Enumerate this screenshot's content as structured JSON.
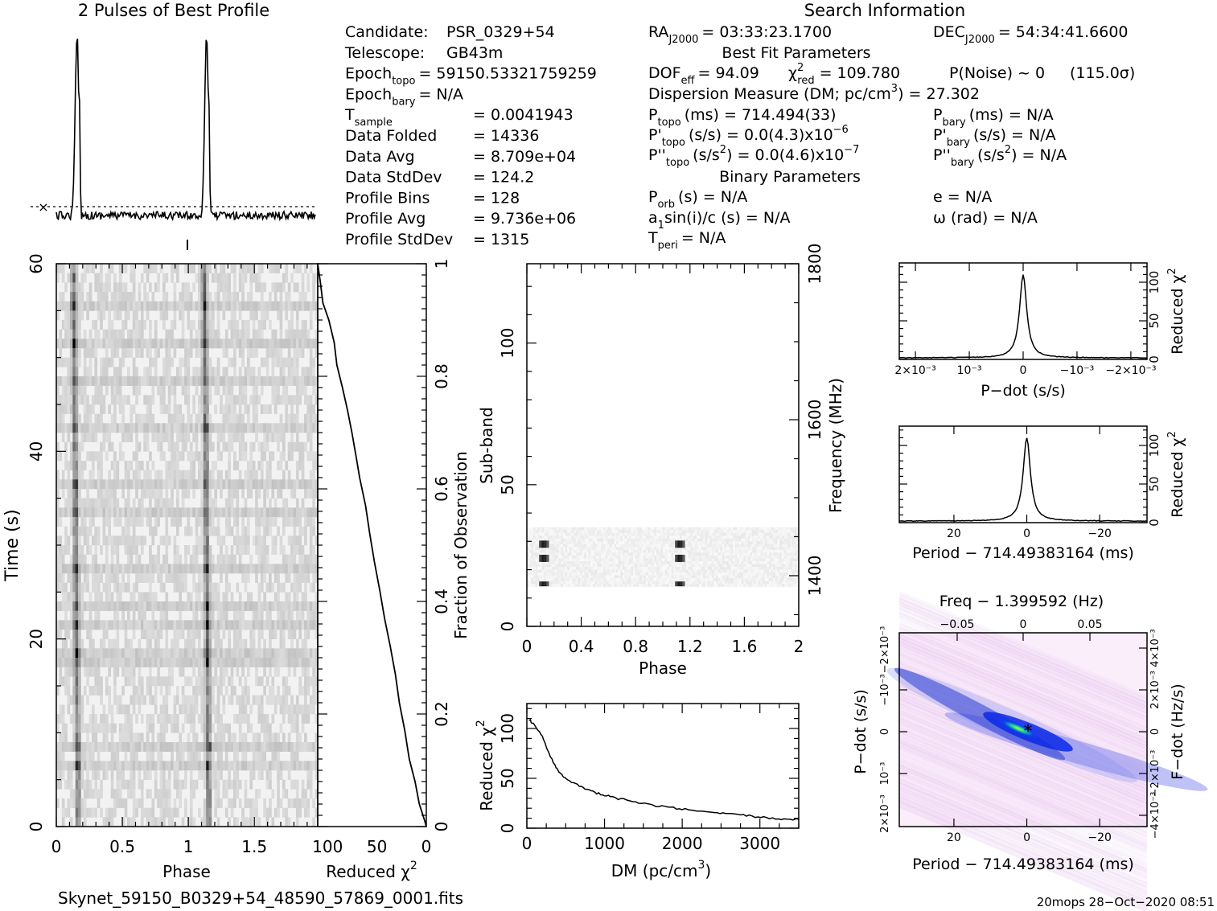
{
  "header": {
    "profile_title": "2 Pulses of Best Profile",
    "search_title": "Search Information",
    "best_fit_title": "Best Fit Parameters",
    "binary_title": "Binary Parameters",
    "filename": "Skynet_59150_B0329+54_48590_57869_0001.fits",
    "footer": "20mops 28−Oct−2020 08:51"
  },
  "info_left": [
    {
      "label": "Candidate:",
      "value": "PSR_0329+54"
    },
    {
      "label": "Telescope:",
      "value": "GB43m"
    },
    {
      "label": "Epoch",
      "sub": "topo",
      "value": "= 59150.53321759259"
    },
    {
      "label": "Epoch",
      "sub": "bary",
      "value": "= N/A"
    },
    {
      "label": "T",
      "sub": "sample",
      "value": "=   0.0041943"
    },
    {
      "label": "Data Folded",
      "value": "=   14336"
    },
    {
      "label": "Data Avg",
      "value": "=   8.709e+04"
    },
    {
      "label": "Data StdDev",
      "value": "=   124.2"
    },
    {
      "label": "Profile Bins",
      "value": "=   128"
    },
    {
      "label": "Profile Avg",
      "value": "=   9.736e+06"
    },
    {
      "label": "Profile StdDev",
      "value": "=   1315"
    }
  ],
  "info_mid": {
    "ra": "RA",
    "ra_sub": "J2000",
    "ra_value": "= 03:33:23.1700",
    "dec": "DEC",
    "dec_sub": "J2000",
    "dec_value": "= 54:34:41.6600",
    "dof": "DOF",
    "dof_sub": "eff",
    "dof_value": "= 94.09",
    "chi_label": "χ",
    "chi_sup": "2",
    "chi_sub": "red",
    "chi_value": "= 109.780",
    "pnoise": "P(Noise) ~ 0",
    "sigma": "(115.0σ)",
    "dm_line_a": "Dispersion Measure (DM; pc/cm",
    "dm_line_sup": "3",
    "dm_line_b": ") = 27.302",
    "ptopo": "P",
    "ptopo_sub": "topo",
    "ptopo_value": "(ms) =  714.494(33)",
    "pbary": "P",
    "pbary_sub": "bary",
    "pbary_value": "(ms) = N/A",
    "pdtopo": "P'",
    "pdtopo_sub": "topo",
    "pdtopo_value": "(s/s) = 0.0(4.3)x10",
    "pdtopo_exp": "−6",
    "pdbary": "P'",
    "pdbary_sub": "bary",
    "pdbary_value": "(s/s) = N/A",
    "pddtopo": "P''",
    "pddtopo_sub": "topo",
    "pddtopo_value_a": "(s/s",
    "pddtopo_value_sup": "2",
    "pddtopo_value_b": ") = 0.0(4.6)x10",
    "pddtopo_exp": "−7",
    "pddbary": "P''",
    "pddbary_sub": "bary",
    "pddbary_value_a": "(s/s",
    "pddbary_value_sup": "2",
    "pddbary_value_b": ") = N/A",
    "porb": "P",
    "porb_sub": "orb",
    "porb_value": "(s) = N/A",
    "ecc": "e = N/A",
    "a1": "a",
    "a1_sub": "1",
    "a1_value": "sin(i)/c (s) = N/A",
    "omega": "ω (rad) = N/A",
    "tperi": "T",
    "tperi_sub": "peri",
    "tperi_value": "= N/A"
  },
  "chart_data": [
    {
      "type": "line",
      "id": "profile",
      "title": "2 Pulses of Best Profile",
      "xlabel": "",
      "ylabel": "",
      "xlim": [
        0,
        2
      ],
      "pulse_phase_centers": [
        0.17,
        1.17
      ],
      "pulse_height_relative": 1.0,
      "baseline_relative": 0.0,
      "error_marker": "×"
    },
    {
      "type": "heatmap",
      "id": "time-phase",
      "xlabel": "Phase",
      "ylabel": "Time (s)",
      "xlim": [
        0,
        2
      ],
      "ylim": [
        0,
        60
      ],
      "x_ticks": [
        "0",
        "0.5",
        "1",
        "1.5"
      ],
      "y_ticks": [
        "0",
        "20",
        "40",
        "60"
      ],
      "pulse_phase_centers": [
        0.15,
        1.15
      ],
      "colormap": "gray"
    },
    {
      "type": "line",
      "id": "cumulative-chi2",
      "xlabel": "Reduced χ",
      "xlabel_sup": "2",
      "ylabel": "Fraction of Observation",
      "xlim": [
        110,
        0
      ],
      "ylim": [
        0,
        1
      ],
      "x_ticks": [
        "100",
        "50",
        "0"
      ],
      "y_ticks": [
        "0",
        "0.2",
        "0.4",
        "0.6",
        "0.8",
        "1"
      ],
      "points": [
        [
          110,
          1.0
        ],
        [
          108,
          0.97
        ],
        [
          104,
          0.93
        ],
        [
          99,
          0.9
        ],
        [
          94,
          0.86
        ],
        [
          90,
          0.82
        ],
        [
          85,
          0.78
        ],
        [
          80,
          0.74
        ],
        [
          76,
          0.7
        ],
        [
          71,
          0.66
        ],
        [
          67,
          0.62
        ],
        [
          62,
          0.57
        ],
        [
          57,
          0.52
        ],
        [
          52,
          0.47
        ],
        [
          47,
          0.42
        ],
        [
          42,
          0.37
        ],
        [
          37,
          0.32
        ],
        [
          32,
          0.27
        ],
        [
          27,
          0.22
        ],
        [
          22,
          0.17
        ],
        [
          17,
          0.12
        ],
        [
          12,
          0.08
        ],
        [
          7,
          0.04
        ],
        [
          2,
          0.01
        ],
        [
          0,
          0.0
        ]
      ]
    },
    {
      "type": "heatmap",
      "id": "subband-phase",
      "xlabel": "Phase",
      "ylabel": "Sub-band",
      "y2label": "Frequency (MHz)",
      "xlim": [
        0,
        2
      ],
      "ylim": [
        0,
        128
      ],
      "x_ticks": [
        "0",
        "0.4",
        "0.8",
        "1.2",
        "1.6",
        "2"
      ],
      "y_ticks": [
        "0",
        "50",
        "100"
      ],
      "y2_ticks": [
        "1400",
        "1600",
        "1800"
      ],
      "y2lim": [
        1335,
        1800
      ],
      "band_subbands": [
        14,
        35
      ],
      "pulse_phase_centers": [
        0.13,
        1.13
      ],
      "bright_subbands": [
        24,
        29,
        15
      ],
      "colormap": "gray"
    },
    {
      "type": "line",
      "id": "dm-chi2",
      "xlabel": "DM (pc/cm",
      "xlabel_sup": "3",
      "xlabel_end": ")",
      "ylabel": "Reduced χ",
      "ylabel_sup": "2",
      "xlim": [
        0,
        3500
      ],
      "ylim": [
        0,
        125
      ],
      "x_ticks": [
        "0",
        "1000",
        "2000",
        "3000"
      ],
      "y_ticks": [
        "0",
        "50",
        "100"
      ],
      "points": [
        [
          27,
          109
        ],
        [
          100,
          104
        ],
        [
          200,
          92
        ],
        [
          300,
          72
        ],
        [
          400,
          58
        ],
        [
          500,
          50
        ],
        [
          700,
          41
        ],
        [
          900,
          35
        ],
        [
          1100,
          31
        ],
        [
          1400,
          26
        ],
        [
          1700,
          22
        ],
        [
          2000,
          19
        ],
        [
          2300,
          16
        ],
        [
          2600,
          14
        ],
        [
          2900,
          12
        ],
        [
          3200,
          10
        ],
        [
          3500,
          9
        ]
      ]
    },
    {
      "type": "line",
      "id": "pdot-chi2",
      "xlabel": "P−dot (s/s)",
      "ylabel": "Reduced χ",
      "ylabel_sup": "2",
      "xlim": [
        0.0023,
        -0.0023
      ],
      "ylim": [
        0,
        125
      ],
      "x_tick_values": [
        0.002,
        0.001,
        0,
        -0.001,
        -0.002
      ],
      "x_ticks": [
        "2×10⁻³",
        "10⁻³",
        "0",
        "−10⁻³",
        "−2×10⁻³"
      ],
      "y_ticks": [
        "0",
        "50",
        "100"
      ],
      "peak": [
        0,
        110
      ],
      "base": 2
    },
    {
      "type": "line",
      "id": "period-chi2",
      "xlabel": "Period − 714.49383164 (ms)",
      "ylabel": "Reduced χ",
      "ylabel_sup": "2",
      "xlim": [
        35,
        -33
      ],
      "ylim": [
        0,
        125
      ],
      "x_ticks": [
        "20",
        "0",
        "−20"
      ],
      "y_ticks": [
        "0",
        "50",
        "100"
      ],
      "peak": [
        0,
        110
      ],
      "base": 2
    },
    {
      "type": "heatmap",
      "id": "period-pdot",
      "title": "Freq − 1.399592 (Hz)",
      "xlabel": "Period − 714.49383164 (ms)",
      "ylabel": "P−dot (s/s)",
      "y2label": "F−dot (Hz/s)",
      "xlim": [
        35,
        -33
      ],
      "ylim": [
        0.0023,
        -0.0023
      ],
      "x_ticks": [
        "20",
        "0",
        "−20"
      ],
      "y_ticks": [
        "−10⁻³",
        "0",
        "10⁻³"
      ],
      "y_edge_ticks": [
        "−2×10⁻³",
        "2×10⁻³"
      ],
      "x2_ticks": [
        "−0.05",
        "0",
        "0.05"
      ],
      "y2_ticks": [
        "4×10⁻³",
        "2×10⁻³",
        "0",
        "−2×10⁻³",
        "−4×10⁻³"
      ],
      "best": [
        0,
        0
      ],
      "colormap": "white-pink-blue-green"
    }
  ]
}
